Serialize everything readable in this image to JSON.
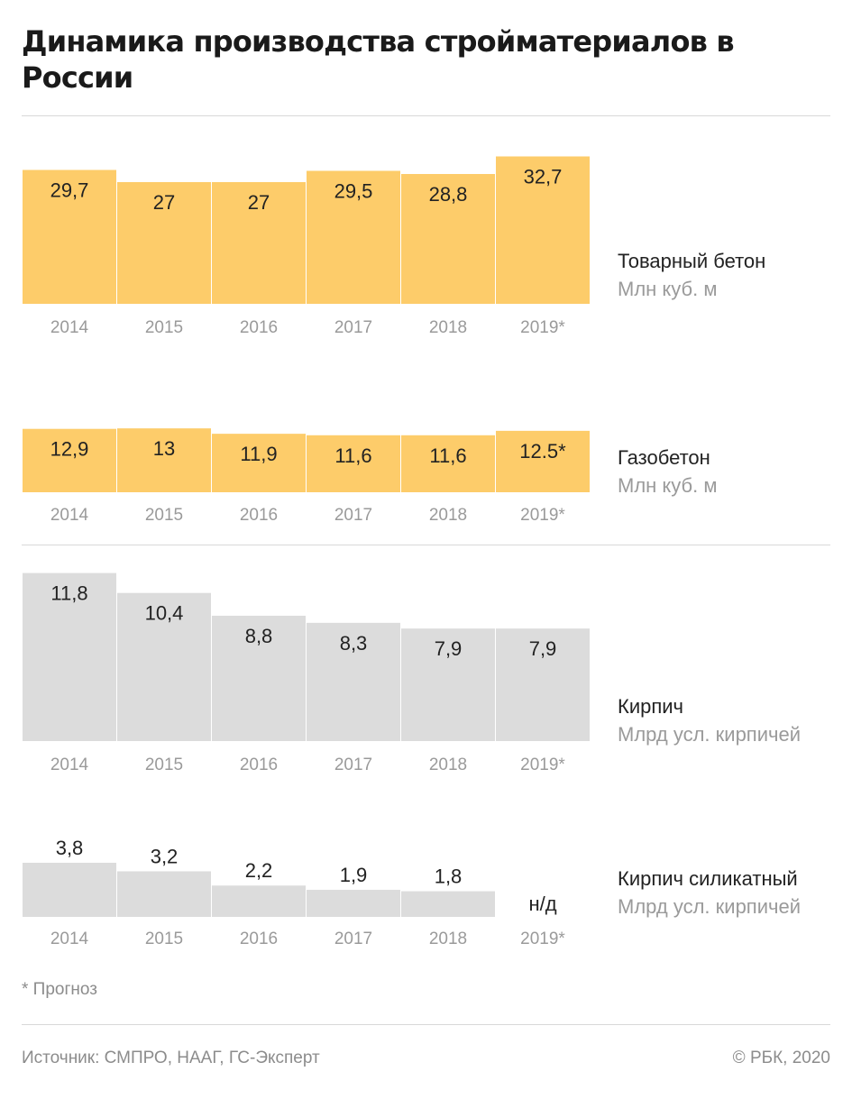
{
  "title": "Динамика производства стройматериалов в России",
  "footnote": "* Прогноз",
  "source": "Источник: СМПРО, НААГ, ГС-Эксперт",
  "copyright": "© РБК, 2020",
  "colors": {
    "yellow": "#fdcc6a",
    "gray": "#dcdcdc",
    "rule": "#d8d8d8",
    "muted": "#9a9a9a"
  },
  "chart_data": [
    {
      "type": "bar",
      "name": "Товарный бетон",
      "unit": "Млн куб. м",
      "color": "#fdcc6a",
      "categories": [
        "2014",
        "2015",
        "2016",
        "2017",
        "2018",
        "2019*"
      ],
      "values": [
        29.7,
        27,
        27,
        29.5,
        28.8,
        32.7
      ],
      "labels": [
        "29,7",
        "27",
        "27",
        "29,5",
        "28,8",
        "32,7"
      ]
    },
    {
      "type": "bar",
      "name": "Газобетон",
      "unit": "Млн куб. м",
      "color": "#fdcc6a",
      "categories": [
        "2014",
        "2015",
        "2016",
        "2017",
        "2018",
        "2019*"
      ],
      "values": [
        12.9,
        13,
        11.9,
        11.6,
        11.6,
        12.5
      ],
      "labels": [
        "12,9",
        "13",
        "11,9",
        "11,6",
        "11,6",
        "12.5*"
      ]
    },
    {
      "type": "bar",
      "name": "Кирпич",
      "unit": "Млрд усл. кирпичей",
      "color": "#dcdcdc",
      "categories": [
        "2014",
        "2015",
        "2016",
        "2017",
        "2018",
        "2019*"
      ],
      "values": [
        11.8,
        10.4,
        8.8,
        8.3,
        7.9,
        7.9
      ],
      "labels": [
        "11,8",
        "10,4",
        "8,8",
        "8,3",
        "7,9",
        "7,9"
      ]
    },
    {
      "type": "bar",
      "name": "Кирпич силикатный",
      "unit": "Млрд усл. кирпичей",
      "color": "#dcdcdc",
      "categories": [
        "2014",
        "2015",
        "2016",
        "2017",
        "2018",
        "2019*"
      ],
      "values": [
        3.8,
        3.2,
        2.2,
        1.9,
        1.8,
        null
      ],
      "labels": [
        "3,8",
        "3,2",
        "2,2",
        "1,9",
        "1,8",
        "н/д"
      ]
    }
  ]
}
